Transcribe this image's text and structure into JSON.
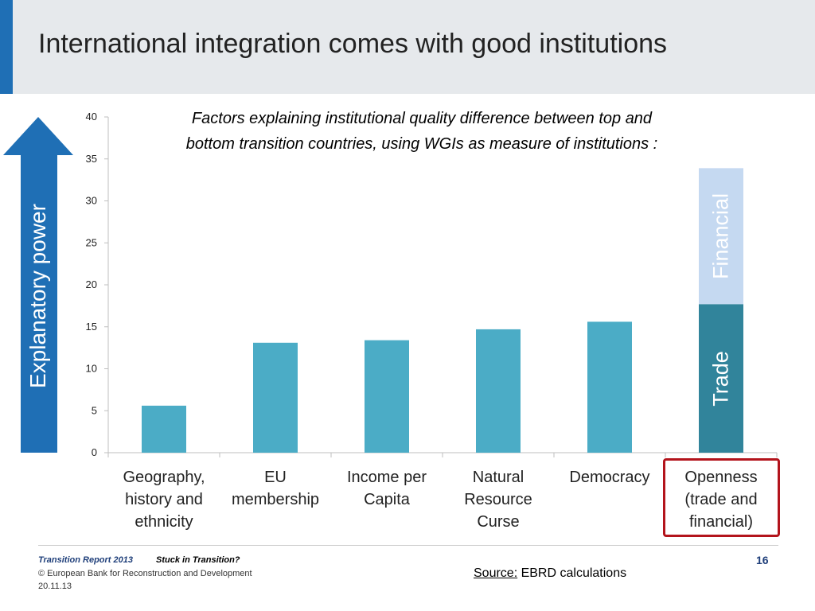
{
  "slide": {
    "title": "International integration comes with good institutions",
    "subtitle_line1": "Factors explaining institutional quality difference between top and",
    "subtitle_line2": "bottom transition countries, using WGIs as measure of institutions :"
  },
  "annotations": {
    "explanatory_power": "Explanatory power",
    "trade": "Trade",
    "financial": "Financial"
  },
  "categories_display": [
    [
      "Geography,",
      "history and",
      "ethnicity"
    ],
    [
      "EU",
      "membership"
    ],
    [
      "Income per",
      "Capita"
    ],
    [
      "Natural",
      "Resource",
      "Curse"
    ],
    [
      "Democracy"
    ],
    [
      "Openness",
      "(trade and",
      "financial)"
    ]
  ],
  "footer": {
    "report": "Transition Report 2013",
    "subtitle": "Stuck in Transition?",
    "copyright": "© European Bank for Reconstruction and Development",
    "date": "20.11.13",
    "page": "16",
    "source_key": "Source:",
    "source_value": " EBRD calculations"
  },
  "colors": {
    "bar": "#4bacc6",
    "trade": "#31849b",
    "financial": "#c5d9f1",
    "arrow": "#1f6fb5",
    "highlight_box": "#b3141c",
    "title_band": "#e6e9ec"
  },
  "chart_data": {
    "type": "bar",
    "title": "Factors explaining institutional quality difference between top and bottom transition countries, using WGIs as measure of institutions :",
    "ylabel": "Explanatory power",
    "categories": [
      "Geography, history and ethnicity",
      "EU membership",
      "Income per Capita",
      "Natural Resource Curse",
      "Democracy",
      "Openness (trade and financial)"
    ],
    "values": [
      5.6,
      13.1,
      13.4,
      14.7,
      15.6,
      33.9
    ],
    "stacked_last": [
      {
        "name": "Trade",
        "value": 17.7
      },
      {
        "name": "Financial",
        "value": 16.2
      }
    ],
    "ylim": [
      0,
      40
    ],
    "yticks": [
      0,
      5,
      10,
      15,
      20,
      25,
      30,
      35,
      40
    ],
    "grid": false
  }
}
